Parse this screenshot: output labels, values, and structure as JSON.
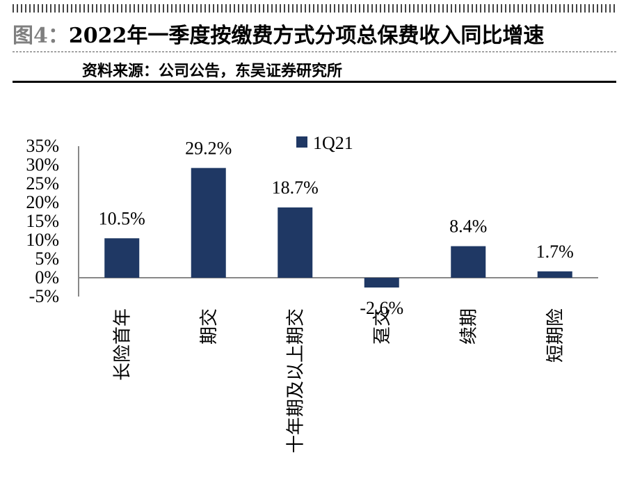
{
  "header": {
    "figure_label": "图4：",
    "title": "2022年一季度按缴费方式分项总保费收入同比增速",
    "source": "资料来源：公司公告，东吴证券研究所"
  },
  "chart_data": {
    "type": "bar",
    "categories": [
      "长险首年",
      "期交",
      "十年期及以上期交",
      "趸交",
      "续期",
      "短期险"
    ],
    "series": [
      {
        "name": "1Q21",
        "values": [
          10.5,
          29.2,
          18.7,
          -2.6,
          8.4,
          1.7
        ]
      }
    ],
    "data_labels": [
      "10.5%",
      "29.2%",
      "18.7%",
      "-2.6%",
      "8.4%",
      "1.7%"
    ],
    "y_tick_labels": [
      "35%",
      "30%",
      "25%",
      "20%",
      "15%",
      "10%",
      "5%",
      "0%",
      "-5%"
    ],
    "y_ticks": [
      35,
      30,
      25,
      20,
      15,
      10,
      5,
      0,
      -5
    ],
    "ylim": [
      -5,
      35
    ],
    "title": "",
    "xlabel": "",
    "ylabel": "",
    "grid": false,
    "legend_position": "top-center",
    "bar_color": "#1f3864"
  }
}
